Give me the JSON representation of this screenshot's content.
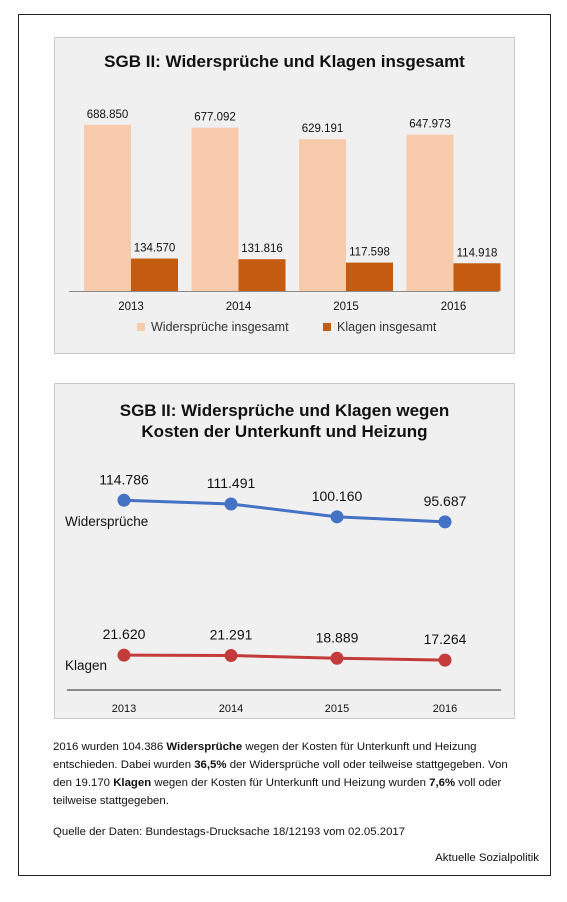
{
  "chart_data": [
    {
      "type": "bar",
      "title": "SGB II: Widersprüche und Klagen insgesamt",
      "categories": [
        "2013",
        "2014",
        "2015",
        "2016"
      ],
      "series": [
        {
          "name": "Widersprüche insgesamt",
          "values": [
            688850,
            677092,
            629191,
            647973
          ],
          "labels": [
            "688.850",
            "677.092",
            "629.191",
            "647.973"
          ],
          "color": "#f8cbad"
        },
        {
          "name": "Klagen insgesamt",
          "values": [
            134570,
            131816,
            117598,
            114918
          ],
          "labels": [
            "134.570",
            "131.816",
            "117.598",
            "114.918"
          ],
          "color": "#c55a11"
        }
      ],
      "ylim": [
        0,
        800000
      ],
      "grid": false,
      "legend": "bottom"
    },
    {
      "type": "line",
      "title": "SGB II: Widersprüche und Klagen wegen Kosten der Unterkunft und Heizung",
      "categories": [
        "2013",
        "2014",
        "2015",
        "2016"
      ],
      "series": [
        {
          "name": "Widersprüche",
          "values": [
            114786,
            111491,
            100160,
            95687
          ],
          "labels": [
            "114.786",
            "111.491",
            "100.160",
            "95.687"
          ],
          "color": "#4472c4"
        },
        {
          "name": "Klagen",
          "values": [
            21620,
            21291,
            18889,
            17264
          ],
          "labels": [
            "21.620",
            "21.291",
            "18.889",
            "17.264"
          ],
          "color": "#c43b3b"
        }
      ],
      "ylim": [
        0,
        130000
      ],
      "grid": false,
      "legend": "inline"
    }
  ],
  "text": {
    "p1": "2016 wurden 104.386 ",
    "p1_bold": "Widersprüche",
    "p2": " wegen der Kosten für Unterkunft und Heizung entschieden. Dabei wurden ",
    "p2_bold": "36,5%",
    "p3": " der Widersprüche voll oder teilweise stattgegeben. Von den 19.170 ",
    "p3_bold": "Klagen",
    "p4": " wegen der Kosten für Unterkunft und Heizung wurden ",
    "p4_bold": "7,6%",
    "p5": " voll oder teilweise stattgegeben.",
    "source": "Quelle der Daten: Bundestags-Drucksache 18/12193 vom 02.05.2017",
    "credit": "Aktuelle Sozialpolitik"
  }
}
